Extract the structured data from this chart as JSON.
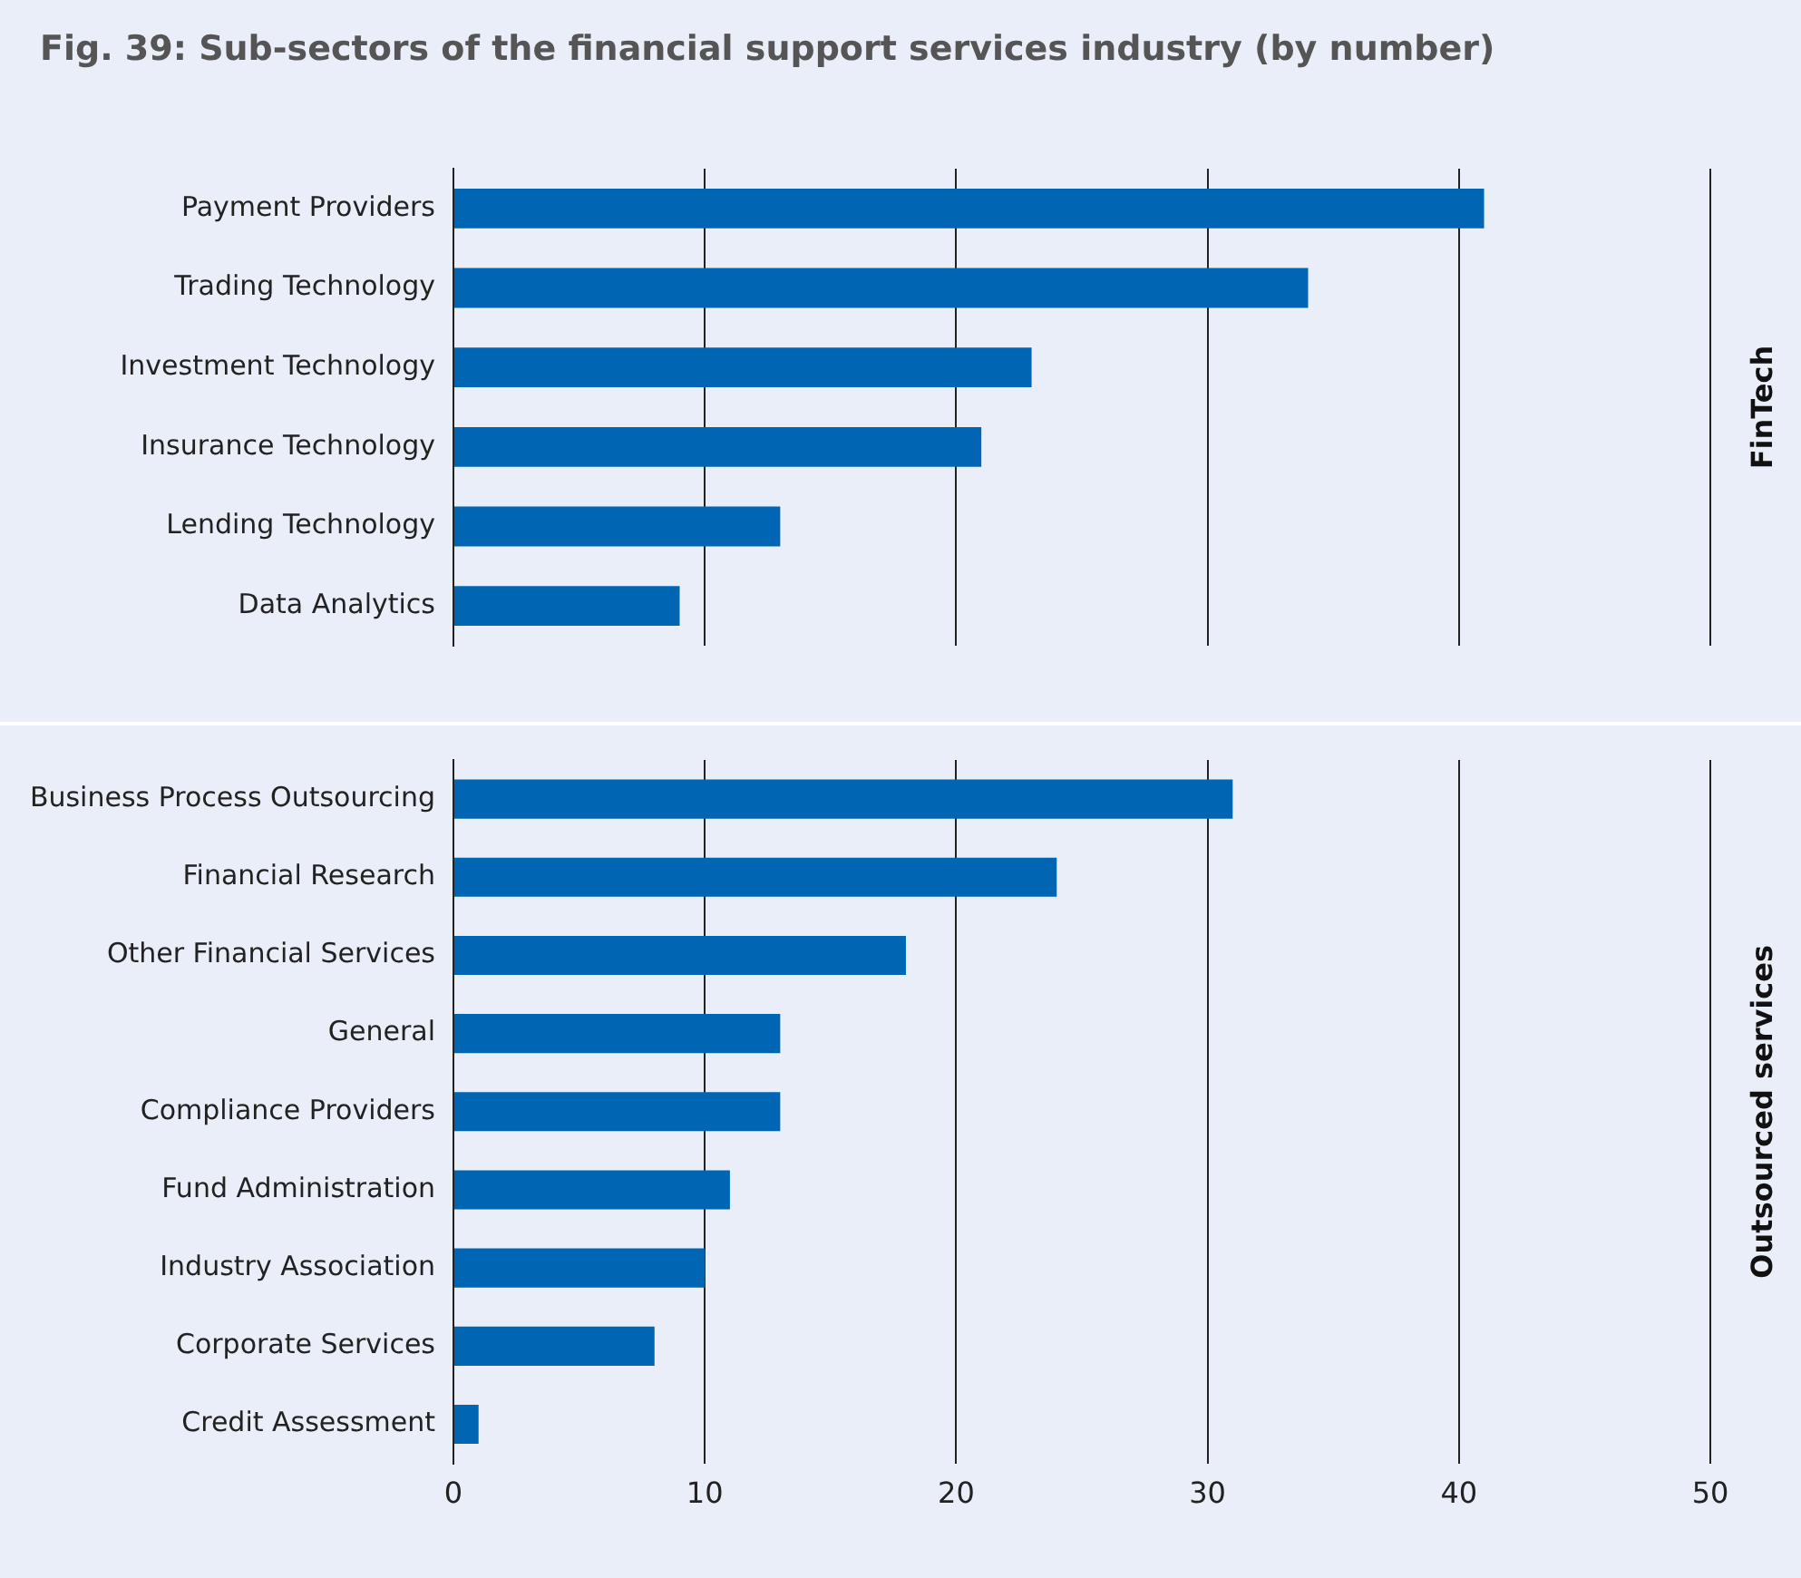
{
  "chart_data": [
    {
      "type": "bar",
      "orientation": "horizontal",
      "title": "Fig. 39: Sub-sectors of the financial support services industry (by number)",
      "y2label": "FinTech",
      "categories": [
        "Payment Providers",
        "Trading Technology",
        "Investment Technology",
        "Insurance Technology",
        "Lending Technology",
        "Data Analytics"
      ],
      "values": [
        41,
        34,
        23,
        21,
        13,
        9
      ],
      "color": "#0066b3",
      "xlim": [
        0,
        50
      ],
      "xticks": [
        0,
        10,
        20,
        30,
        40,
        50
      ],
      "grid": "x",
      "tick_labels": "y"
    },
    {
      "type": "bar",
      "orientation": "horizontal",
      "y2label": "Outsourced services",
      "categories": [
        "Business Process Outsourcing",
        "Financial Research",
        "Other Financial Services",
        "General",
        "Compliance Providers",
        "Fund Administration",
        "Industry Association",
        "Corporate Services",
        "Credit Assessment"
      ],
      "values": [
        31,
        24,
        18,
        13,
        13,
        11,
        10,
        8,
        1
      ],
      "color": "#0066b3",
      "xlim": [
        0,
        50
      ],
      "xticks": [
        0,
        10,
        20,
        30,
        40,
        50
      ],
      "grid": "x"
    }
  ]
}
